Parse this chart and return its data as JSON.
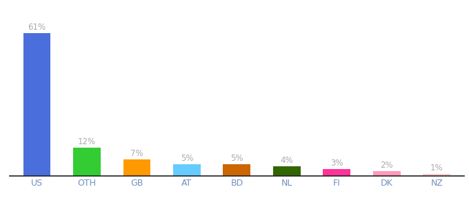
{
  "categories": [
    "US",
    "OTH",
    "GB",
    "AT",
    "BD",
    "NL",
    "FI",
    "DK",
    "NZ"
  ],
  "values": [
    61,
    12,
    7,
    5,
    5,
    4,
    3,
    2,
    1
  ],
  "bar_colors": [
    "#4a6fdc",
    "#33cc33",
    "#ff9900",
    "#66ccff",
    "#cc6600",
    "#336600",
    "#ff3399",
    "#ff99bb",
    "#ffcccc"
  ],
  "labels": [
    "61%",
    "12%",
    "7%",
    "5%",
    "5%",
    "4%",
    "3%",
    "2%",
    "1%"
  ],
  "ylim": [
    0,
    68
  ],
  "background_color": "#ffffff",
  "label_color": "#aaaaaa",
  "label_fontsize": 8.5,
  "tick_fontsize": 9.0,
  "tick_color": "#7090c0"
}
